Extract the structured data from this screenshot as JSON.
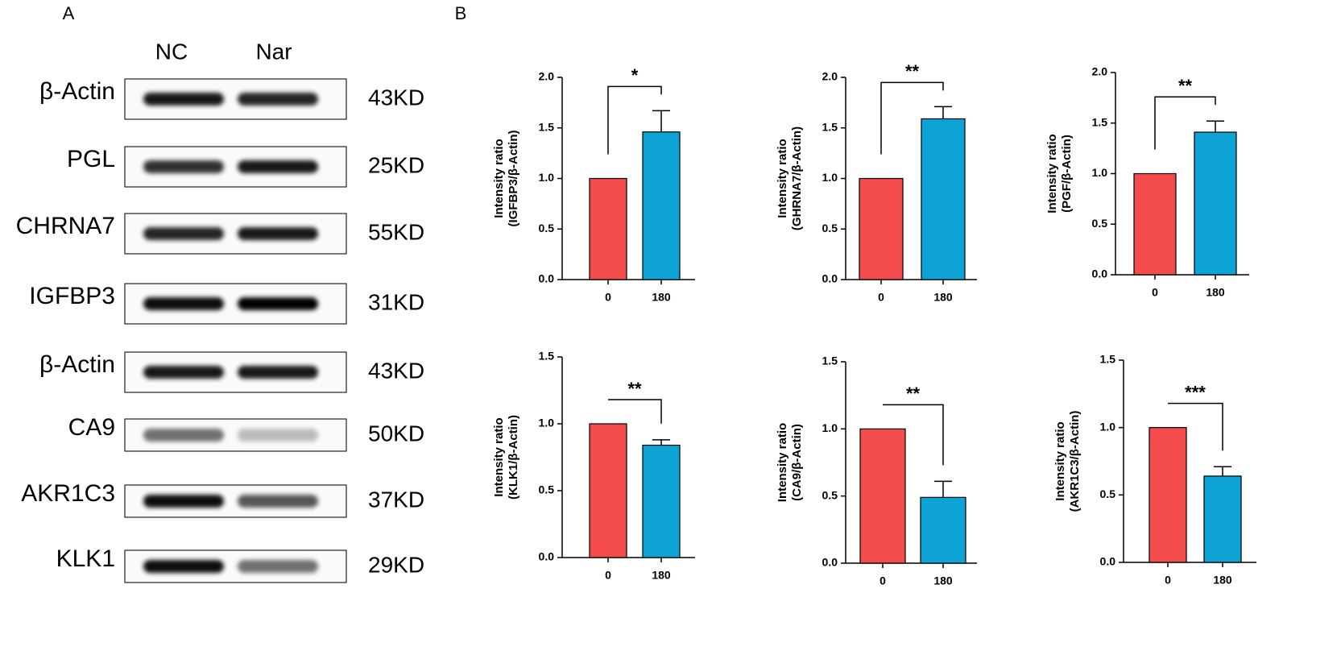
{
  "panel_labels": [
    "A",
    "B"
  ],
  "blot": {
    "lanes": [
      "NC",
      "Nar"
    ],
    "rows": [
      {
        "protein": "β-Actin",
        "size": "43KD"
      },
      {
        "protein": "PGL",
        "size": "25KD"
      },
      {
        "protein": "CHRNA7",
        "size": "55KD"
      },
      {
        "protein": "IGFBP3",
        "size": "31KD"
      },
      {
        "protein": "β-Actin",
        "size": "43KD"
      },
      {
        "protein": "CA9",
        "size": "50KD"
      },
      {
        "protein": "AKR1C3",
        "size": "37KD"
      },
      {
        "protein": "KLK1",
        "size": "29KD"
      }
    ]
  },
  "chart_data": [
    {
      "type": "bar",
      "ylabel": [
        "Intensity ratio",
        "(IGFBP3/β-Actin)"
      ],
      "categories": [
        "0",
        "180"
      ],
      "values": [
        1,
        1.46
      ],
      "errors": [
        null,
        0.21
      ],
      "colors": [
        "#f44b4c",
        "#0ea3d5"
      ],
      "significance": "*",
      "ylim": [
        0,
        2
      ],
      "yticks": [
        {
          "value": 0,
          "label": "0.0"
        },
        0.5,
        {
          "value": 1,
          "label": "1.0"
        },
        1.5,
        {
          "value": 2,
          "label": "2.0"
        }
      ]
    },
    {
      "type": "bar",
      "ylabel": [
        "Intensity ratio",
        "(GHRNA7/β-Actin)"
      ],
      "categories": [
        "0",
        "180"
      ],
      "values": [
        1,
        1.59
      ],
      "errors": [
        null,
        0.12
      ],
      "colors": [
        "#f44b4c",
        "#0ea3d5"
      ],
      "significance": "**",
      "ylim": [
        0,
        2
      ],
      "yticks": [
        {
          "value": 0,
          "label": "0.0"
        },
        0.5,
        {
          "value": 1,
          "label": "1.0"
        },
        1.5,
        {
          "value": 2,
          "label": "2.0"
        }
      ]
    },
    {
      "type": "bar",
      "ylabel": [
        "Intensity ratio",
        "(PGF/β-Actin)"
      ],
      "categories": [
        "0",
        "180"
      ],
      "values": [
        1,
        1.41
      ],
      "errors": [
        null,
        0.11
      ],
      "colors": [
        "#f44b4c",
        "#0ea3d5"
      ],
      "significance": "**",
      "ylim": [
        0,
        2
      ],
      "yticks": [
        {
          "value": 0,
          "label": "0.0"
        },
        0.5,
        {
          "value": 1,
          "label": "1.0"
        },
        1.5,
        {
          "value": 2,
          "label": "2.0"
        }
      ]
    },
    {
      "type": "bar",
      "ylabel": [
        "Intensity ratio",
        "(KLK1/β-Actin)"
      ],
      "categories": [
        "0",
        "180"
      ],
      "values": [
        1,
        0.84
      ],
      "errors": [
        null,
        0.04
      ],
      "colors": [
        "#f44b4c",
        "#0ea3d5"
      ],
      "significance": "**",
      "ylim": [
        0,
        1.5
      ],
      "yticks": [
        {
          "value": 0,
          "label": "0.0"
        },
        0.5,
        {
          "value": 1,
          "label": "1.0"
        },
        1.5
      ]
    },
    {
      "type": "bar",
      "ylabel": [
        "Intensity ratio",
        "(CA9/β-Actin)"
      ],
      "categories": [
        "0",
        "180"
      ],
      "values": [
        1,
        0.49
      ],
      "errors": [
        null,
        0.12
      ],
      "colors": [
        "#f44b4c",
        "#0ea3d5"
      ],
      "significance": "**",
      "ylim": [
        0,
        1.5
      ],
      "yticks": [
        {
          "value": 0,
          "label": "0.0"
        },
        0.5,
        {
          "value": 1,
          "label": "1.0"
        },
        1.5
      ]
    },
    {
      "type": "bar",
      "ylabel": [
        "Intensity ratio",
        "(AKR1C3/β-Actin)"
      ],
      "categories": [
        "0",
        "180"
      ],
      "values": [
        1,
        0.64
      ],
      "errors": [
        null,
        0.07
      ],
      "colors": [
        "#f44b4c",
        "#0ea3d5"
      ],
      "significance": "***",
      "ylim": [
        0,
        1.5
      ],
      "yticks": [
        {
          "value": 0,
          "label": "0.0"
        },
        0.5,
        {
          "value": 1,
          "label": "1.0"
        },
        1.5
      ]
    }
  ]
}
